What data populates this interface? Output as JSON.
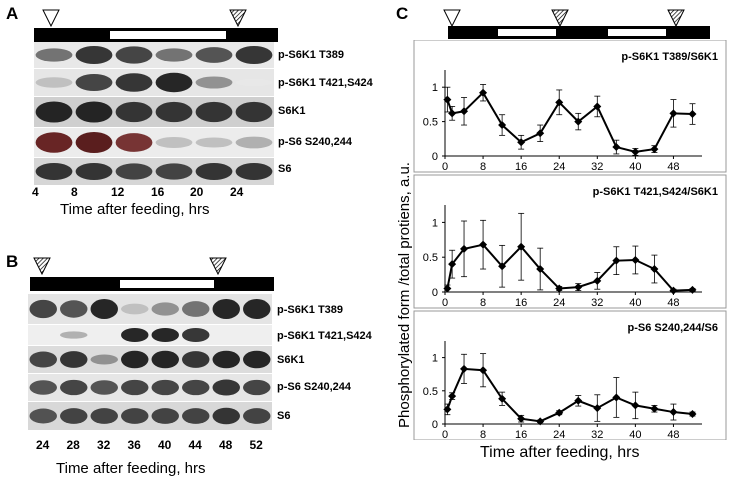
{
  "panels": {
    "a": {
      "letter": "A",
      "labels": [
        "p-S6K1  T389",
        "p-S6K1 T421,S424",
        "S6K1",
        "p-S6 S240,244",
        "S6"
      ],
      "times": [
        "4",
        "8",
        "12",
        "16",
        "20",
        "24"
      ],
      "xtitle": "Time after feeding, hrs"
    },
    "b": {
      "letter": "B",
      "labels": [
        "p-S6K1  T389",
        "p-S6K1 T421,S424",
        "S6K1",
        "p-S6 S240,244",
        "S6"
      ],
      "times": [
        "24",
        "28",
        "32",
        "36",
        "40",
        "44",
        "48",
        "52"
      ],
      "xtitle": "Time after feeding, hrs"
    },
    "c": {
      "letter": "C",
      "ytitle": "Phosphorylated form /total protiens, a.u.",
      "xtitle": "Time after feeding, hrs"
    }
  },
  "chart_data": [
    {
      "type": "line",
      "title": "p-S6K1  T389/S6K1",
      "x": [
        0.5,
        1.5,
        4,
        8,
        12,
        16,
        20,
        24,
        28,
        32,
        36,
        40,
        44,
        48,
        52
      ],
      "values": [
        0.82,
        0.62,
        0.65,
        0.92,
        0.45,
        0.2,
        0.33,
        0.78,
        0.5,
        0.72,
        0.13,
        0.06,
        0.1,
        0.62,
        0.61
      ],
      "errors": [
        0.18,
        0.1,
        0.2,
        0.12,
        0.15,
        0.1,
        0.12,
        0.18,
        0.12,
        0.15,
        0.1,
        0.05,
        0.05,
        0.2,
        0.15
      ],
      "xticks": [
        0,
        8,
        16,
        24,
        32,
        40,
        48
      ],
      "yticks": [
        0,
        0.5,
        1
      ],
      "xlim": [
        0,
        54
      ],
      "ylim": [
        0,
        1.25
      ]
    },
    {
      "type": "line",
      "title": "p-S6K1 T421,S424/S6K1",
      "x": [
        0.5,
        1.5,
        4,
        8,
        12,
        16,
        20,
        24,
        28,
        32,
        36,
        40,
        44,
        48,
        52
      ],
      "values": [
        0.05,
        0.4,
        0.62,
        0.68,
        0.37,
        0.65,
        0.33,
        0.05,
        0.07,
        0.16,
        0.45,
        0.46,
        0.33,
        0.02,
        0.03
      ],
      "errors": [
        0.05,
        0.2,
        0.4,
        0.35,
        0.3,
        0.48,
        0.3,
        0.03,
        0.05,
        0.12,
        0.2,
        0.2,
        0.2,
        0.02,
        0.02
      ],
      "xticks": [
        0,
        8,
        16,
        24,
        32,
        40,
        48
      ],
      "yticks": [
        0,
        0.5,
        1
      ],
      "xlim": [
        0,
        54
      ],
      "ylim": [
        0,
        1.25
      ]
    },
    {
      "type": "line",
      "title": "p-S6 S240,244/S6",
      "x": [
        0.5,
        1.5,
        4,
        8,
        12,
        16,
        20,
        24,
        28,
        32,
        36,
        40,
        44,
        48,
        52
      ],
      "values": [
        0.22,
        0.42,
        0.83,
        0.81,
        0.38,
        0.08,
        0.04,
        0.17,
        0.35,
        0.24,
        0.4,
        0.28,
        0.23,
        0.18,
        0.15
      ],
      "errors": [
        0.08,
        0.05,
        0.22,
        0.25,
        0.1,
        0.05,
        0.02,
        0.03,
        0.08,
        0.2,
        0.3,
        0.2,
        0.05,
        0.12,
        0.03
      ],
      "xticks": [
        0,
        8,
        16,
        24,
        32,
        40,
        48
      ],
      "yticks": [
        0,
        0.5,
        1
      ],
      "xlim": [
        0,
        54
      ],
      "ylim": [
        0,
        1.25
      ]
    }
  ]
}
